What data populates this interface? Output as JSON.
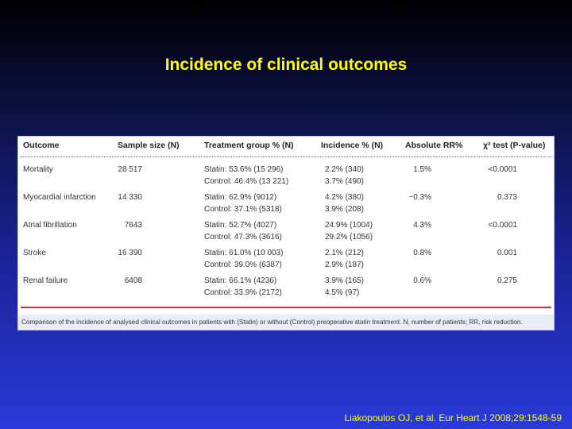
{
  "title": "Incidence of clinical outcomes",
  "table": {
    "headers": {
      "outcome": "Outcome",
      "sample_size": "Sample size (N)",
      "treatment_group": "Treatment group % (N)",
      "incidence": "Incidence % (N)",
      "absolute_rr": "Absolute RR%",
      "chi2_test": "χ² test (P-value)"
    },
    "rows": [
      {
        "outcome": "Mortality",
        "sample_size": "28 517",
        "treatment_statin": "Statin: 53.6% (15 296)",
        "treatment_control": "Control: 46.4% (13 221)",
        "incidence_statin": "2.2% (340)",
        "incidence_control": "3.7% (490)",
        "absolute_rr": "1.5%",
        "p_value": "<0.0001"
      },
      {
        "outcome": "Myocardial infarction",
        "sample_size": "14 330",
        "treatment_statin": "Statin: 62.9% (9012)",
        "treatment_control": "Control: 37.1% (5318)",
        "incidence_statin": "4.2% (380)",
        "incidence_control": "3.9% (208)",
        "absolute_rr": "−0.3%",
        "p_value": "0.373"
      },
      {
        "outcome": "Atrial fibrillation",
        "sample_size": "7643",
        "treatment_statin": "Statin: 52.7% (4027)",
        "treatment_control": "Control: 47.3% (3616)",
        "incidence_statin": "24.9% (1004)",
        "incidence_control": "29.2% (1056)",
        "absolute_rr": "4.3%",
        "p_value": "<0.0001"
      },
      {
        "outcome": "Stroke",
        "sample_size": "16 390",
        "treatment_statin": "Statin: 61.0% (10 003)",
        "treatment_control": "Control: 39.0% (6387)",
        "incidence_statin": "2.1% (212)",
        "incidence_control": "2.9% (187)",
        "absolute_rr": "0.8%",
        "p_value": "0.001"
      },
      {
        "outcome": "Renal failure",
        "sample_size": "6408",
        "treatment_statin": "Statin: 66.1% (4236)",
        "treatment_control": "Control: 33.9% (2172)",
        "incidence_statin": "3.9% (165)",
        "incidence_control": "4.5% (97)",
        "absolute_rr": "0.6%",
        "p_value": "0.275"
      }
    ],
    "caption": "Comparison of the incidence of analysed clinical outcomes in patients with (Statin) or without (Control) preoperative statin treatment. N, number of patients; RR, risk reduction."
  },
  "citation": "Liakopoulos OJ, et al. Eur Heart J 2008;29:1548-59",
  "colors": {
    "title": "#ffff00",
    "citation": "#ffff00",
    "rule": "#d92c2c"
  }
}
